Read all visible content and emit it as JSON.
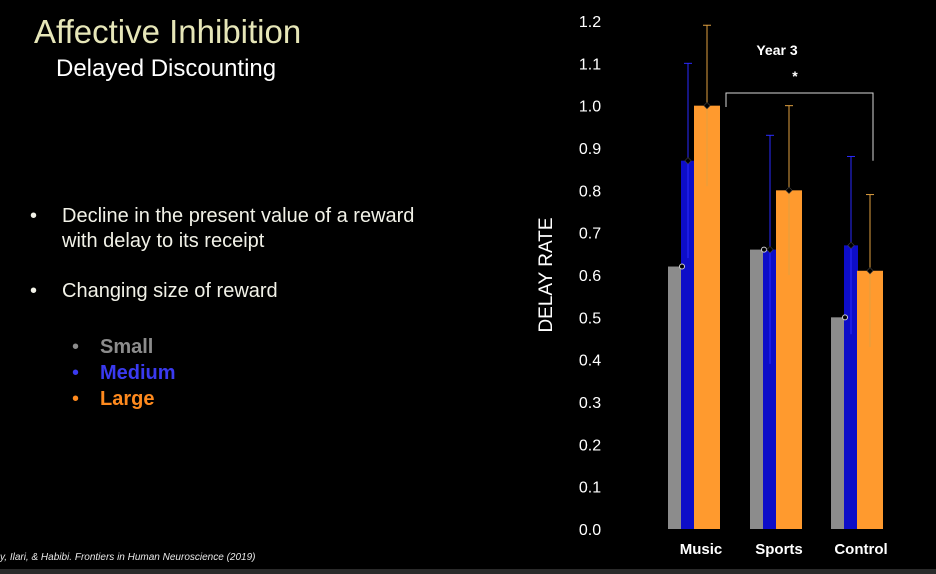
{
  "slide": {
    "title": "Affective Inhibition",
    "subtitle": "Delayed Discounting",
    "bullets": [
      "Decline in the present value of a reward with delay to its receipt",
      "Changing size of reward"
    ],
    "sub_bullets": [
      "Small",
      "Medium",
      "Large"
    ],
    "bullet_glyph": "•",
    "citation": "y, Ilari, & Habibi.  Frontiers in Human Neuroscience (2019)"
  },
  "colors": {
    "background": "#000000",
    "title": "#e6e6b8",
    "small": "#8c8c8c",
    "medium": "#0d0dc8",
    "large": "#ff9a2e",
    "medium_text": "#3a3af0",
    "large_text": "#ff8a1e",
    "small_text": "#8c8c8c"
  },
  "chart_data": {
    "type": "bar",
    "ylabel": "DELAY RATE",
    "xlabel": "",
    "ylim": [
      0,
      1.2
    ],
    "yticks": [
      0,
      0.1,
      0.2,
      0.3,
      0.4,
      0.5,
      0.6,
      0.7,
      0.8,
      0.9,
      1.0,
      1.1,
      1.2
    ],
    "ytick_labels": [
      "0.0",
      "0.1",
      "0.2",
      "0.3",
      "0.4",
      "0.5",
      "0.6",
      "0.7",
      "0.8",
      "0.9",
      "1.0",
      "1.1",
      "1.2"
    ],
    "categories": [
      "Music",
      "Sports",
      "Control"
    ],
    "series": [
      {
        "name": "Small",
        "values": [
          0.62,
          0.66,
          0.5
        ],
        "error": [
          0.0,
          0.0,
          0.0
        ]
      },
      {
        "name": "Medium",
        "values": [
          0.87,
          0.66,
          0.67
        ],
        "error": [
          0.23,
          0.27,
          0.21
        ]
      },
      {
        "name": "Large",
        "values": [
          1.0,
          0.8,
          0.61
        ],
        "error": [
          0.19,
          0.2,
          0.18
        ]
      }
    ],
    "annotation": {
      "label": "Year 3",
      "significance": "*",
      "from": "Music",
      "to": "Control"
    }
  }
}
